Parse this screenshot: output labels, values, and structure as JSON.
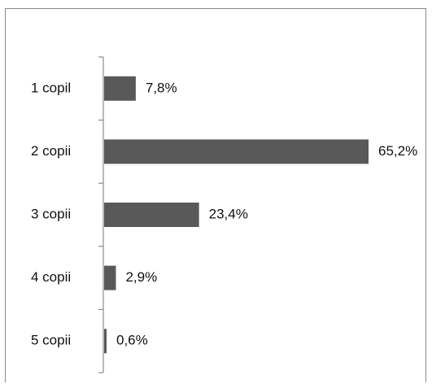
{
  "chart_data": {
    "type": "bar",
    "orientation": "horizontal",
    "categories": [
      "1 copil",
      "2 copii",
      "3 copii",
      "4 copii",
      "5 copii"
    ],
    "values": [
      7.8,
      65.2,
      23.4,
      2.9,
      0.6
    ],
    "value_labels": [
      "7,8%",
      "65,2%",
      "23,4%",
      "2,9%",
      "0,6%"
    ],
    "unit": "%",
    "xlim": [
      0,
      65.2
    ],
    "grid": false,
    "legend": "none",
    "bar_color": "#595959",
    "axis_color": "#8c8c8c"
  }
}
